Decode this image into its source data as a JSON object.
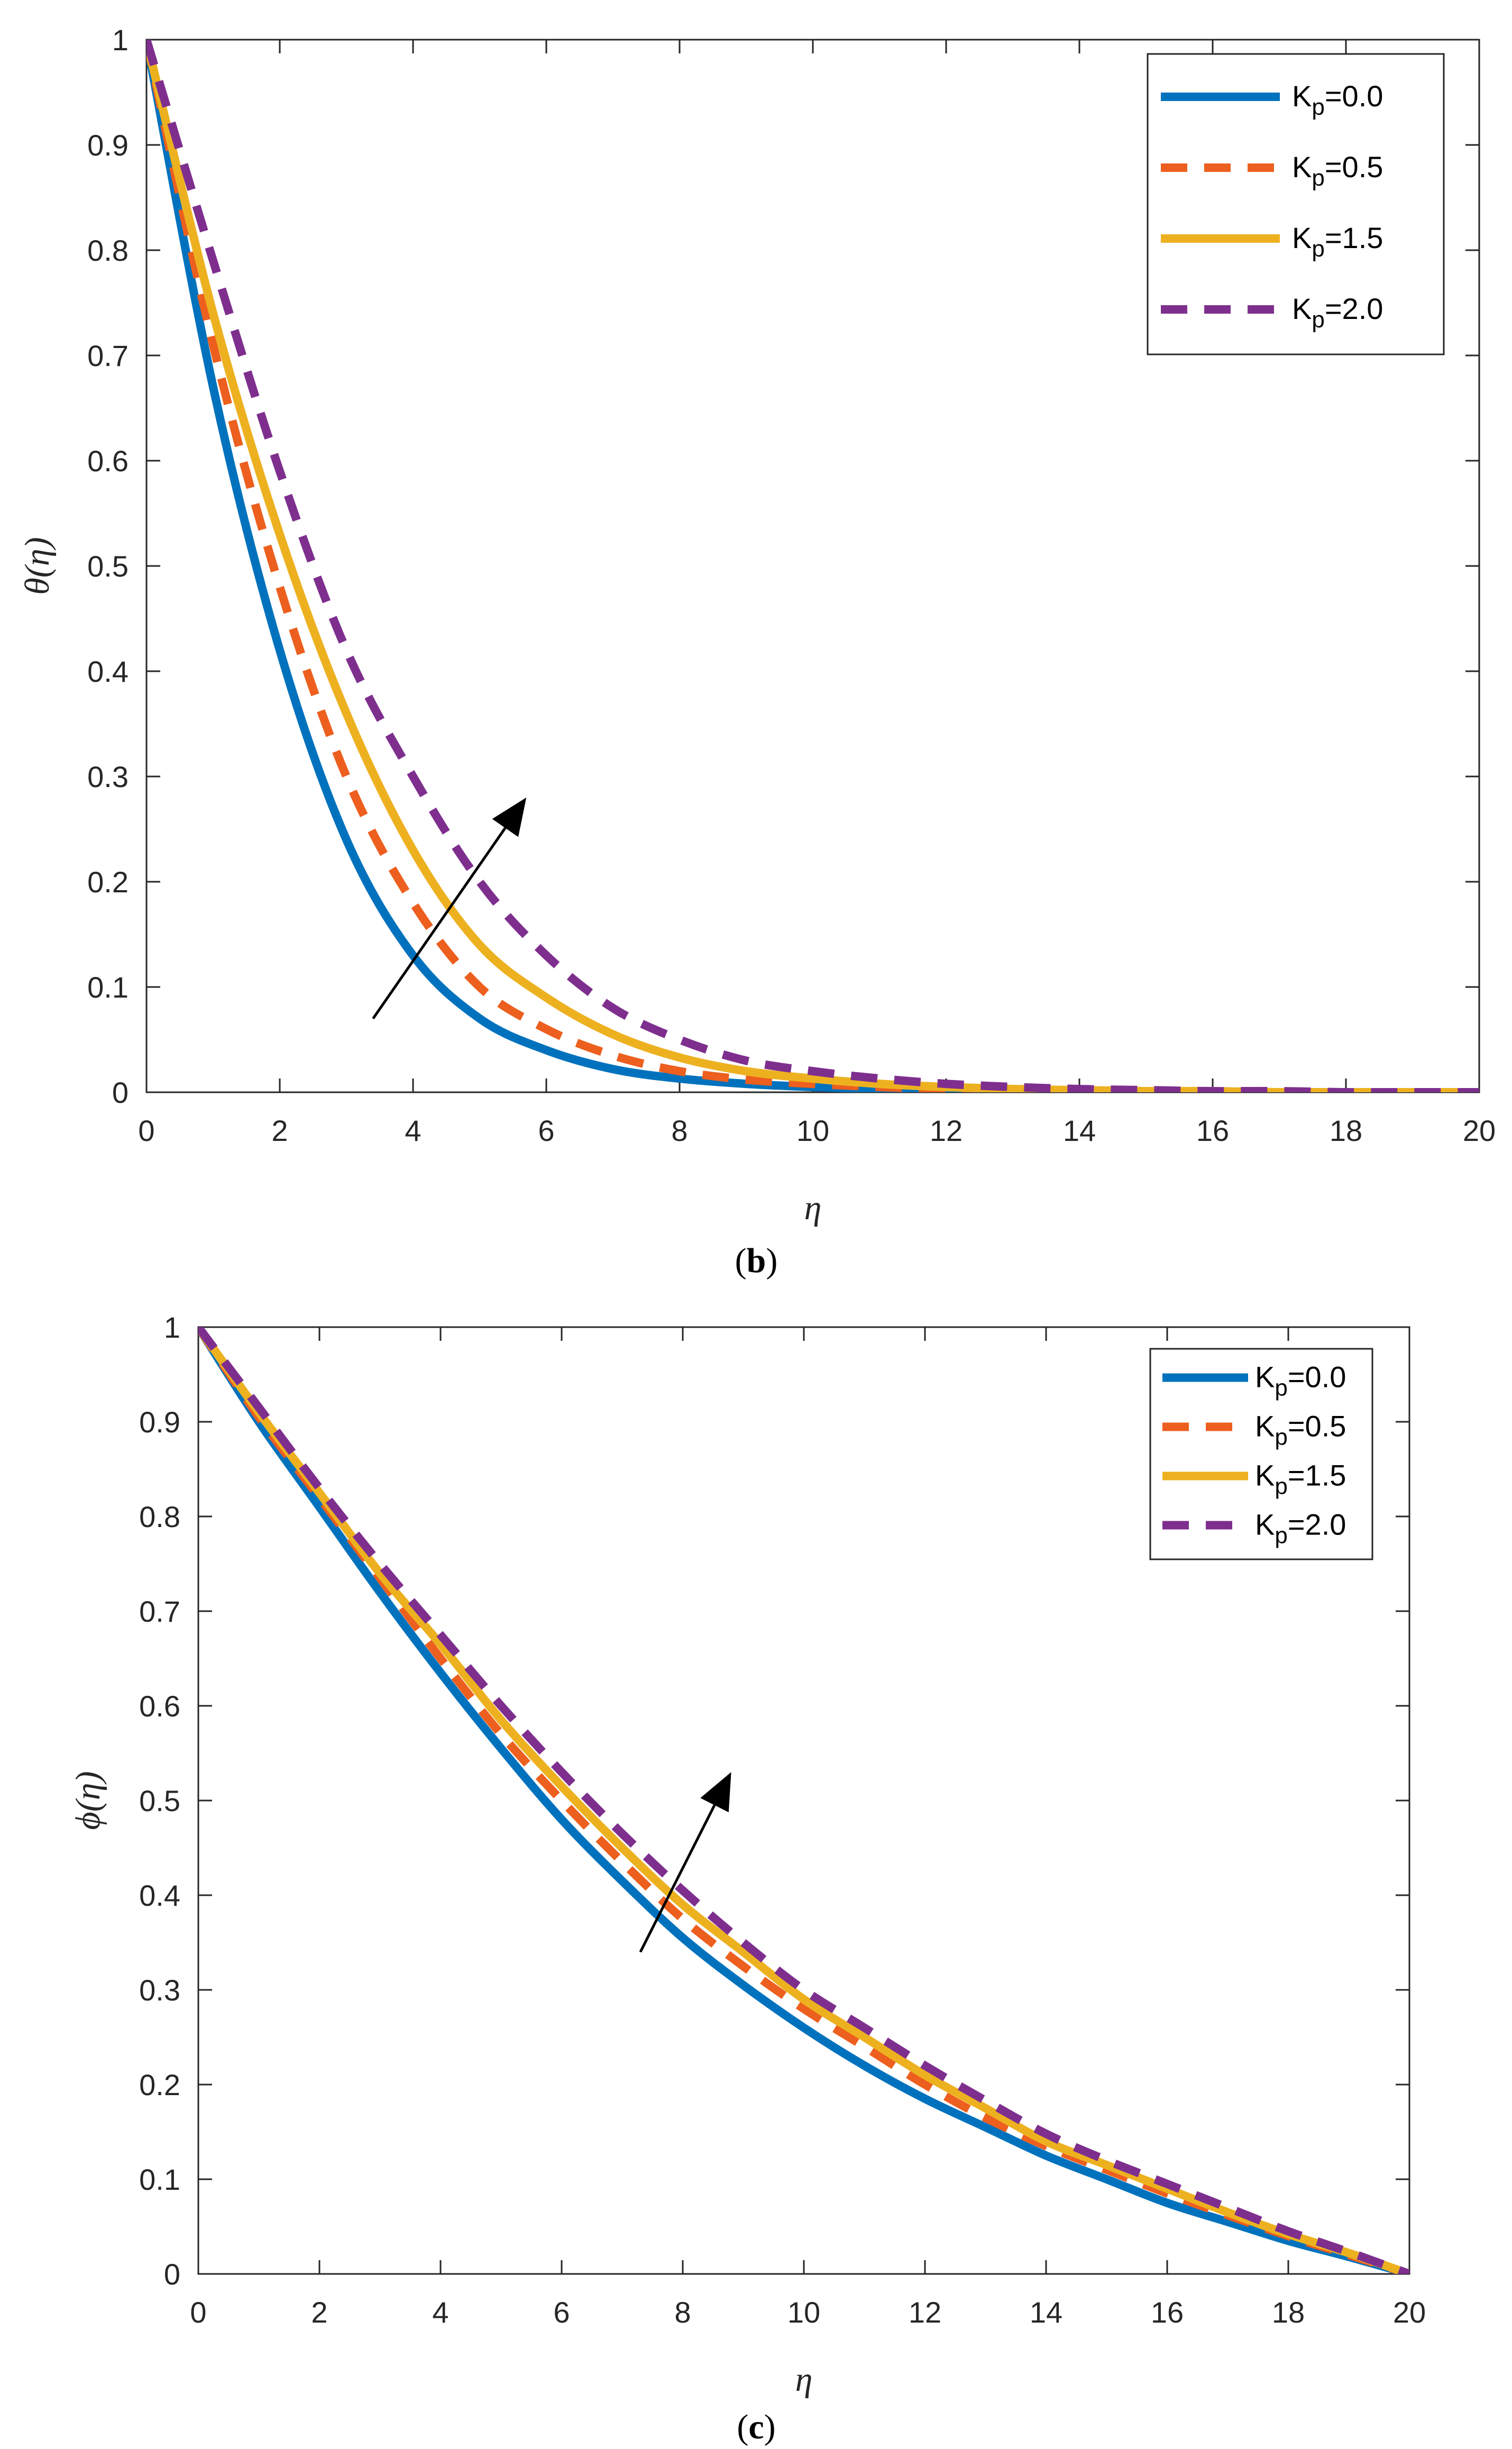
{
  "colors": {
    "kp00": "#0072BD",
    "kp05": "#ED5F1E",
    "kp15": "#EDB120",
    "kp20": "#7E2F8E",
    "axis": "#262626",
    "arrow": "#000000"
  },
  "chart_data": [
    {
      "type": "line",
      "panel_caption": {
        "open": "(",
        "letter": "b",
        "close": ")"
      },
      "xlabel": "η",
      "ylabel": "θ(η)",
      "xlim": [
        0,
        20
      ],
      "ylim": [
        0,
        1
      ],
      "xticks": [
        "0",
        "2",
        "4",
        "6",
        "8",
        "10",
        "12",
        "14",
        "16",
        "18",
        "20"
      ],
      "yticks": [
        "0",
        "0.1",
        "0.2",
        "0.3",
        "0.4",
        "0.5",
        "0.6",
        "0.7",
        "0.8",
        "0.9",
        "1"
      ],
      "legend_position": "top-right",
      "x": [
        0,
        1,
        2,
        3,
        4,
        5,
        6,
        7,
        8,
        9,
        10,
        11,
        12,
        13,
        14,
        15,
        16,
        17,
        18,
        19,
        20
      ],
      "series": [
        {
          "name": "Kp=0.0",
          "label_main": "K",
          "label_sub": "p",
          "label_val": "=0.0",
          "color_key": "kp00",
          "dash": false,
          "values": [
            1.0,
            0.67,
            0.42,
            0.24,
            0.13,
            0.07,
            0.04,
            0.022,
            0.013,
            0.008,
            0.005,
            0.003,
            0.002,
            0.001,
            0.001,
            0.0,
            0.0,
            0.0,
            0.0,
            0.0,
            0.0
          ]
        },
        {
          "name": "Kp=0.5",
          "label_main": "K",
          "label_sub": "p",
          "label_val": "=0.5",
          "color_key": "kp05",
          "dash": true,
          "values": [
            1.0,
            0.71,
            0.48,
            0.3,
            0.18,
            0.1,
            0.06,
            0.035,
            0.02,
            0.012,
            0.008,
            0.005,
            0.003,
            0.002,
            0.001,
            0.001,
            0.0,
            0.0,
            0.0,
            0.0,
            0.0
          ]
        },
        {
          "name": "Kp=1.5",
          "label_main": "K",
          "label_sub": "p",
          "label_val": "=1.5",
          "color_key": "kp15",
          "dash": false,
          "values": [
            1.0,
            0.74,
            0.53,
            0.36,
            0.23,
            0.14,
            0.09,
            0.055,
            0.033,
            0.02,
            0.013,
            0.008,
            0.005,
            0.003,
            0.002,
            0.001,
            0.001,
            0.0,
            0.0,
            0.0,
            0.0
          ]
        },
        {
          "name": "Kp=2.0",
          "label_main": "K",
          "label_sub": "p",
          "label_val": "=2.0",
          "color_key": "kp20",
          "dash": true,
          "values": [
            1.0,
            0.79,
            0.59,
            0.42,
            0.3,
            0.2,
            0.13,
            0.08,
            0.05,
            0.03,
            0.02,
            0.013,
            0.008,
            0.005,
            0.003,
            0.002,
            0.001,
            0.001,
            0.0,
            0.0,
            0.0
          ]
        }
      ],
      "annotation_arrow": {
        "from": [
          3.4,
          0.07
        ],
        "to": [
          5.7,
          0.28
        ]
      }
    },
    {
      "type": "line",
      "panel_caption": {
        "open": "(",
        "letter": "c",
        "close": ")"
      },
      "xlabel": "η",
      "ylabel": "ϕ(η)",
      "xlim": [
        0,
        20
      ],
      "ylim": [
        0,
        1
      ],
      "xticks": [
        "0",
        "2",
        "4",
        "6",
        "8",
        "10",
        "12",
        "14",
        "16",
        "18",
        "20"
      ],
      "yticks": [
        "0",
        "0.1",
        "0.2",
        "0.3",
        "0.4",
        "0.5",
        "0.6",
        "0.7",
        "0.8",
        "0.9",
        "1"
      ],
      "legend_position": "top-right",
      "x": [
        0,
        1,
        2,
        3,
        4,
        5,
        6,
        7,
        8,
        9,
        10,
        11,
        12,
        13,
        14,
        15,
        16,
        17,
        18,
        19,
        20
      ],
      "series": [
        {
          "name": "Kp=0.0",
          "label_main": "K",
          "label_sub": "p",
          "label_val": "=0.0",
          "color_key": "kp00",
          "dash": false,
          "values": [
            1.0,
            0.9,
            0.81,
            0.72,
            0.635,
            0.555,
            0.48,
            0.415,
            0.355,
            0.305,
            0.26,
            0.22,
            0.185,
            0.155,
            0.125,
            0.1,
            0.075,
            0.055,
            0.035,
            0.018,
            0.0
          ]
        },
        {
          "name": "Kp=0.5",
          "label_main": "K",
          "label_sub": "p",
          "label_val": "=0.5",
          "color_key": "kp05",
          "dash": true,
          "values": [
            1.0,
            0.905,
            0.82,
            0.735,
            0.65,
            0.57,
            0.5,
            0.435,
            0.375,
            0.325,
            0.28,
            0.24,
            0.2,
            0.165,
            0.135,
            0.11,
            0.085,
            0.062,
            0.04,
            0.02,
            0.0
          ]
        },
        {
          "name": "Kp=1.5",
          "label_main": "K",
          "label_sub": "p",
          "label_val": "=1.5",
          "color_key": "kp15",
          "dash": false,
          "values": [
            1.0,
            0.91,
            0.825,
            0.74,
            0.665,
            0.585,
            0.515,
            0.45,
            0.39,
            0.34,
            0.29,
            0.25,
            0.21,
            0.175,
            0.14,
            0.115,
            0.09,
            0.065,
            0.042,
            0.022,
            0.0
          ]
        },
        {
          "name": "Kp=2.0",
          "label_main": "K",
          "label_sub": "p",
          "label_val": "=2.0",
          "color_key": "kp20",
          "dash": true,
          "values": [
            1.0,
            0.915,
            0.83,
            0.75,
            0.675,
            0.6,
            0.53,
            0.465,
            0.405,
            0.35,
            0.3,
            0.26,
            0.22,
            0.183,
            0.148,
            0.12,
            0.095,
            0.07,
            0.045,
            0.023,
            0.0
          ]
        }
      ],
      "annotation_arrow": {
        "from": [
          7.3,
          0.34
        ],
        "to": [
          8.8,
          0.53
        ]
      }
    }
  ]
}
